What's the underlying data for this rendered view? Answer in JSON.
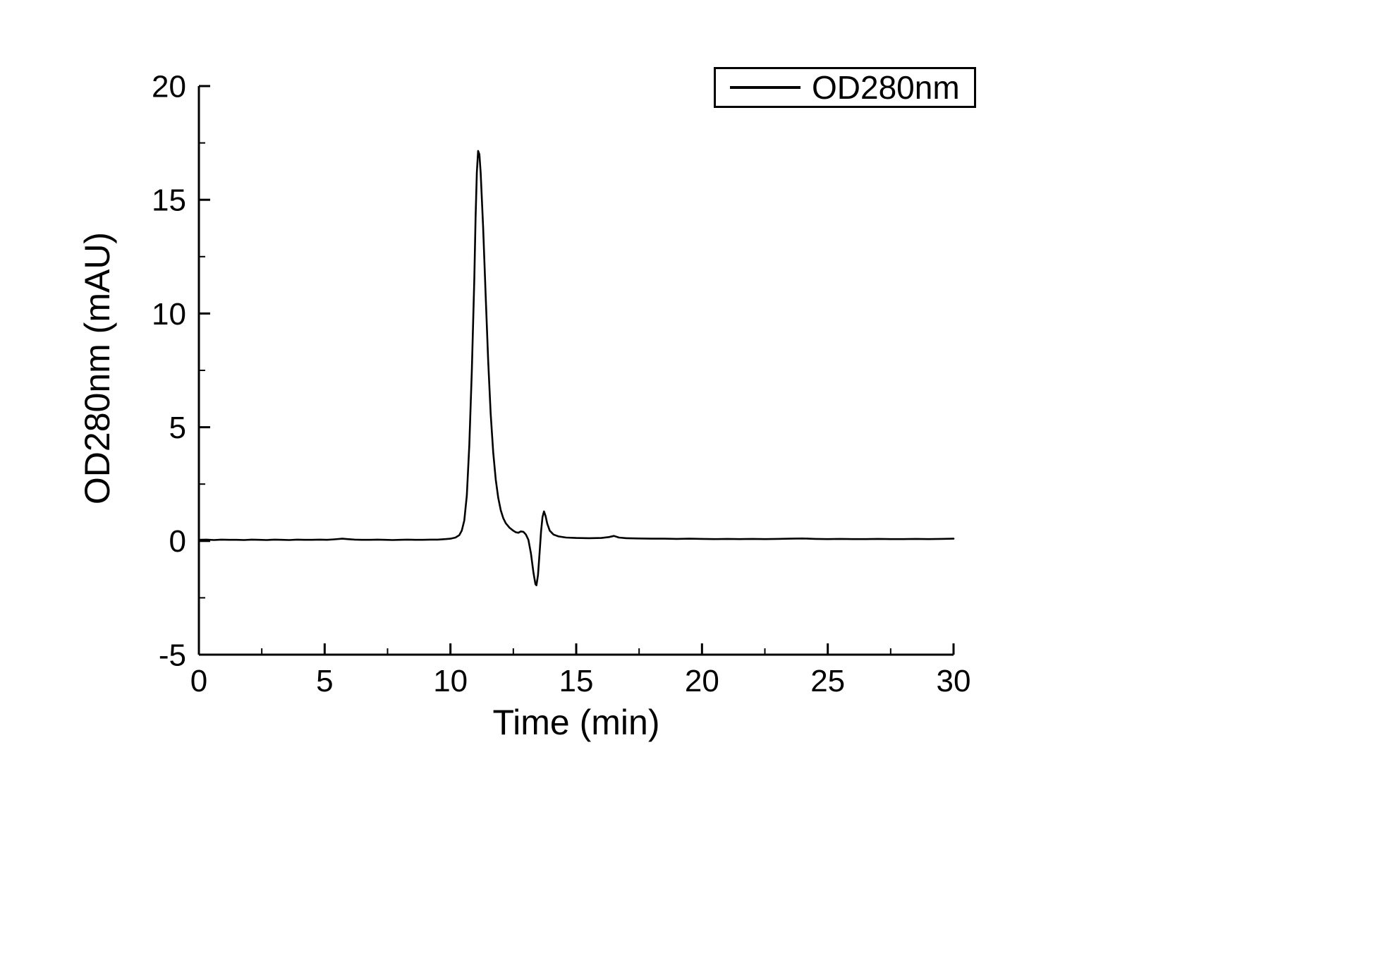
{
  "chart_data": {
    "type": "line",
    "title": "",
    "xlabel": "Time (min)",
    "ylabel": "OD280nm (mAU)",
    "xlim": [
      0,
      30
    ],
    "ylim": [
      -5,
      20
    ],
    "xticks": [
      0,
      5,
      10,
      15,
      20,
      25,
      30
    ],
    "yticks": [
      -5,
      0,
      5,
      10,
      15,
      20
    ],
    "x_minor_step": 2.5,
    "y_minor_step": 2.5,
    "grid": false,
    "line_color": "#000000",
    "axis_color": "#000000",
    "legend": {
      "position": "top-right"
    },
    "series": [
      {
        "name": "OD280nm",
        "points": [
          [
            0,
            0.05
          ],
          [
            0.3,
            0.06
          ],
          [
            0.6,
            0.04
          ],
          [
            0.9,
            0.06
          ],
          [
            1.2,
            0.05
          ],
          [
            1.5,
            0.05
          ],
          [
            1.8,
            0.04
          ],
          [
            2.1,
            0.06
          ],
          [
            2.4,
            0.05
          ],
          [
            2.7,
            0.04
          ],
          [
            3.0,
            0.06
          ],
          [
            3.3,
            0.05
          ],
          [
            3.6,
            0.04
          ],
          [
            3.9,
            0.06
          ],
          [
            4.2,
            0.05
          ],
          [
            4.5,
            0.05
          ],
          [
            4.8,
            0.06
          ],
          [
            5.1,
            0.05
          ],
          [
            5.4,
            0.07
          ],
          [
            5.7,
            0.1
          ],
          [
            5.9,
            0.08
          ],
          [
            6.2,
            0.06
          ],
          [
            6.5,
            0.05
          ],
          [
            6.8,
            0.05
          ],
          [
            7.1,
            0.06
          ],
          [
            7.4,
            0.05
          ],
          [
            7.7,
            0.04
          ],
          [
            8.0,
            0.05
          ],
          [
            8.3,
            0.06
          ],
          [
            8.6,
            0.05
          ],
          [
            8.9,
            0.05
          ],
          [
            9.2,
            0.06
          ],
          [
            9.5,
            0.06
          ],
          [
            9.8,
            0.08
          ],
          [
            10.0,
            0.1
          ],
          [
            10.2,
            0.15
          ],
          [
            10.35,
            0.25
          ],
          [
            10.45,
            0.45
          ],
          [
            10.55,
            0.9
          ],
          [
            10.65,
            2.0
          ],
          [
            10.75,
            4.2
          ],
          [
            10.85,
            7.5
          ],
          [
            10.95,
            11.5
          ],
          [
            11.0,
            14.2
          ],
          [
            11.05,
            16.2
          ],
          [
            11.1,
            17.15
          ],
          [
            11.15,
            17.0
          ],
          [
            11.2,
            16.2
          ],
          [
            11.3,
            13.8
          ],
          [
            11.4,
            10.8
          ],
          [
            11.5,
            7.9
          ],
          [
            11.6,
            5.6
          ],
          [
            11.7,
            3.9
          ],
          [
            11.8,
            2.7
          ],
          [
            11.9,
            1.9
          ],
          [
            12.0,
            1.35
          ],
          [
            12.1,
            1.0
          ],
          [
            12.2,
            0.78
          ],
          [
            12.35,
            0.58
          ],
          [
            12.5,
            0.45
          ],
          [
            12.6,
            0.38
          ],
          [
            12.7,
            0.36
          ],
          [
            12.8,
            0.42
          ],
          [
            12.9,
            0.4
          ],
          [
            13.0,
            0.28
          ],
          [
            13.1,
            0.05
          ],
          [
            13.2,
            -0.55
          ],
          [
            13.3,
            -1.4
          ],
          [
            13.38,
            -1.9
          ],
          [
            13.42,
            -1.95
          ],
          [
            13.48,
            -1.5
          ],
          [
            13.54,
            -0.6
          ],
          [
            13.6,
            0.4
          ],
          [
            13.66,
            1.05
          ],
          [
            13.72,
            1.3
          ],
          [
            13.78,
            1.1
          ],
          [
            13.85,
            0.75
          ],
          [
            13.95,
            0.45
          ],
          [
            14.1,
            0.28
          ],
          [
            14.3,
            0.2
          ],
          [
            14.6,
            0.15
          ],
          [
            15.0,
            0.13
          ],
          [
            15.5,
            0.12
          ],
          [
            16.0,
            0.13
          ],
          [
            16.3,
            0.17
          ],
          [
            16.5,
            0.22
          ],
          [
            16.7,
            0.15
          ],
          [
            17.0,
            0.12
          ],
          [
            17.5,
            0.11
          ],
          [
            18.0,
            0.1
          ],
          [
            18.5,
            0.1
          ],
          [
            19.0,
            0.09
          ],
          [
            19.5,
            0.1
          ],
          [
            20.0,
            0.09
          ],
          [
            20.5,
            0.08
          ],
          [
            21.0,
            0.09
          ],
          [
            21.5,
            0.08
          ],
          [
            22.0,
            0.09
          ],
          [
            22.5,
            0.08
          ],
          [
            23.0,
            0.09
          ],
          [
            23.5,
            0.1
          ],
          [
            24.0,
            0.11
          ],
          [
            24.5,
            0.09
          ],
          [
            25.0,
            0.08
          ],
          [
            25.5,
            0.09
          ],
          [
            26.0,
            0.08
          ],
          [
            26.5,
            0.08
          ],
          [
            27.0,
            0.09
          ],
          [
            27.5,
            0.08
          ],
          [
            28.0,
            0.08
          ],
          [
            28.5,
            0.09
          ],
          [
            29.0,
            0.08
          ],
          [
            29.5,
            0.09
          ],
          [
            30.0,
            0.1
          ]
        ]
      }
    ]
  }
}
